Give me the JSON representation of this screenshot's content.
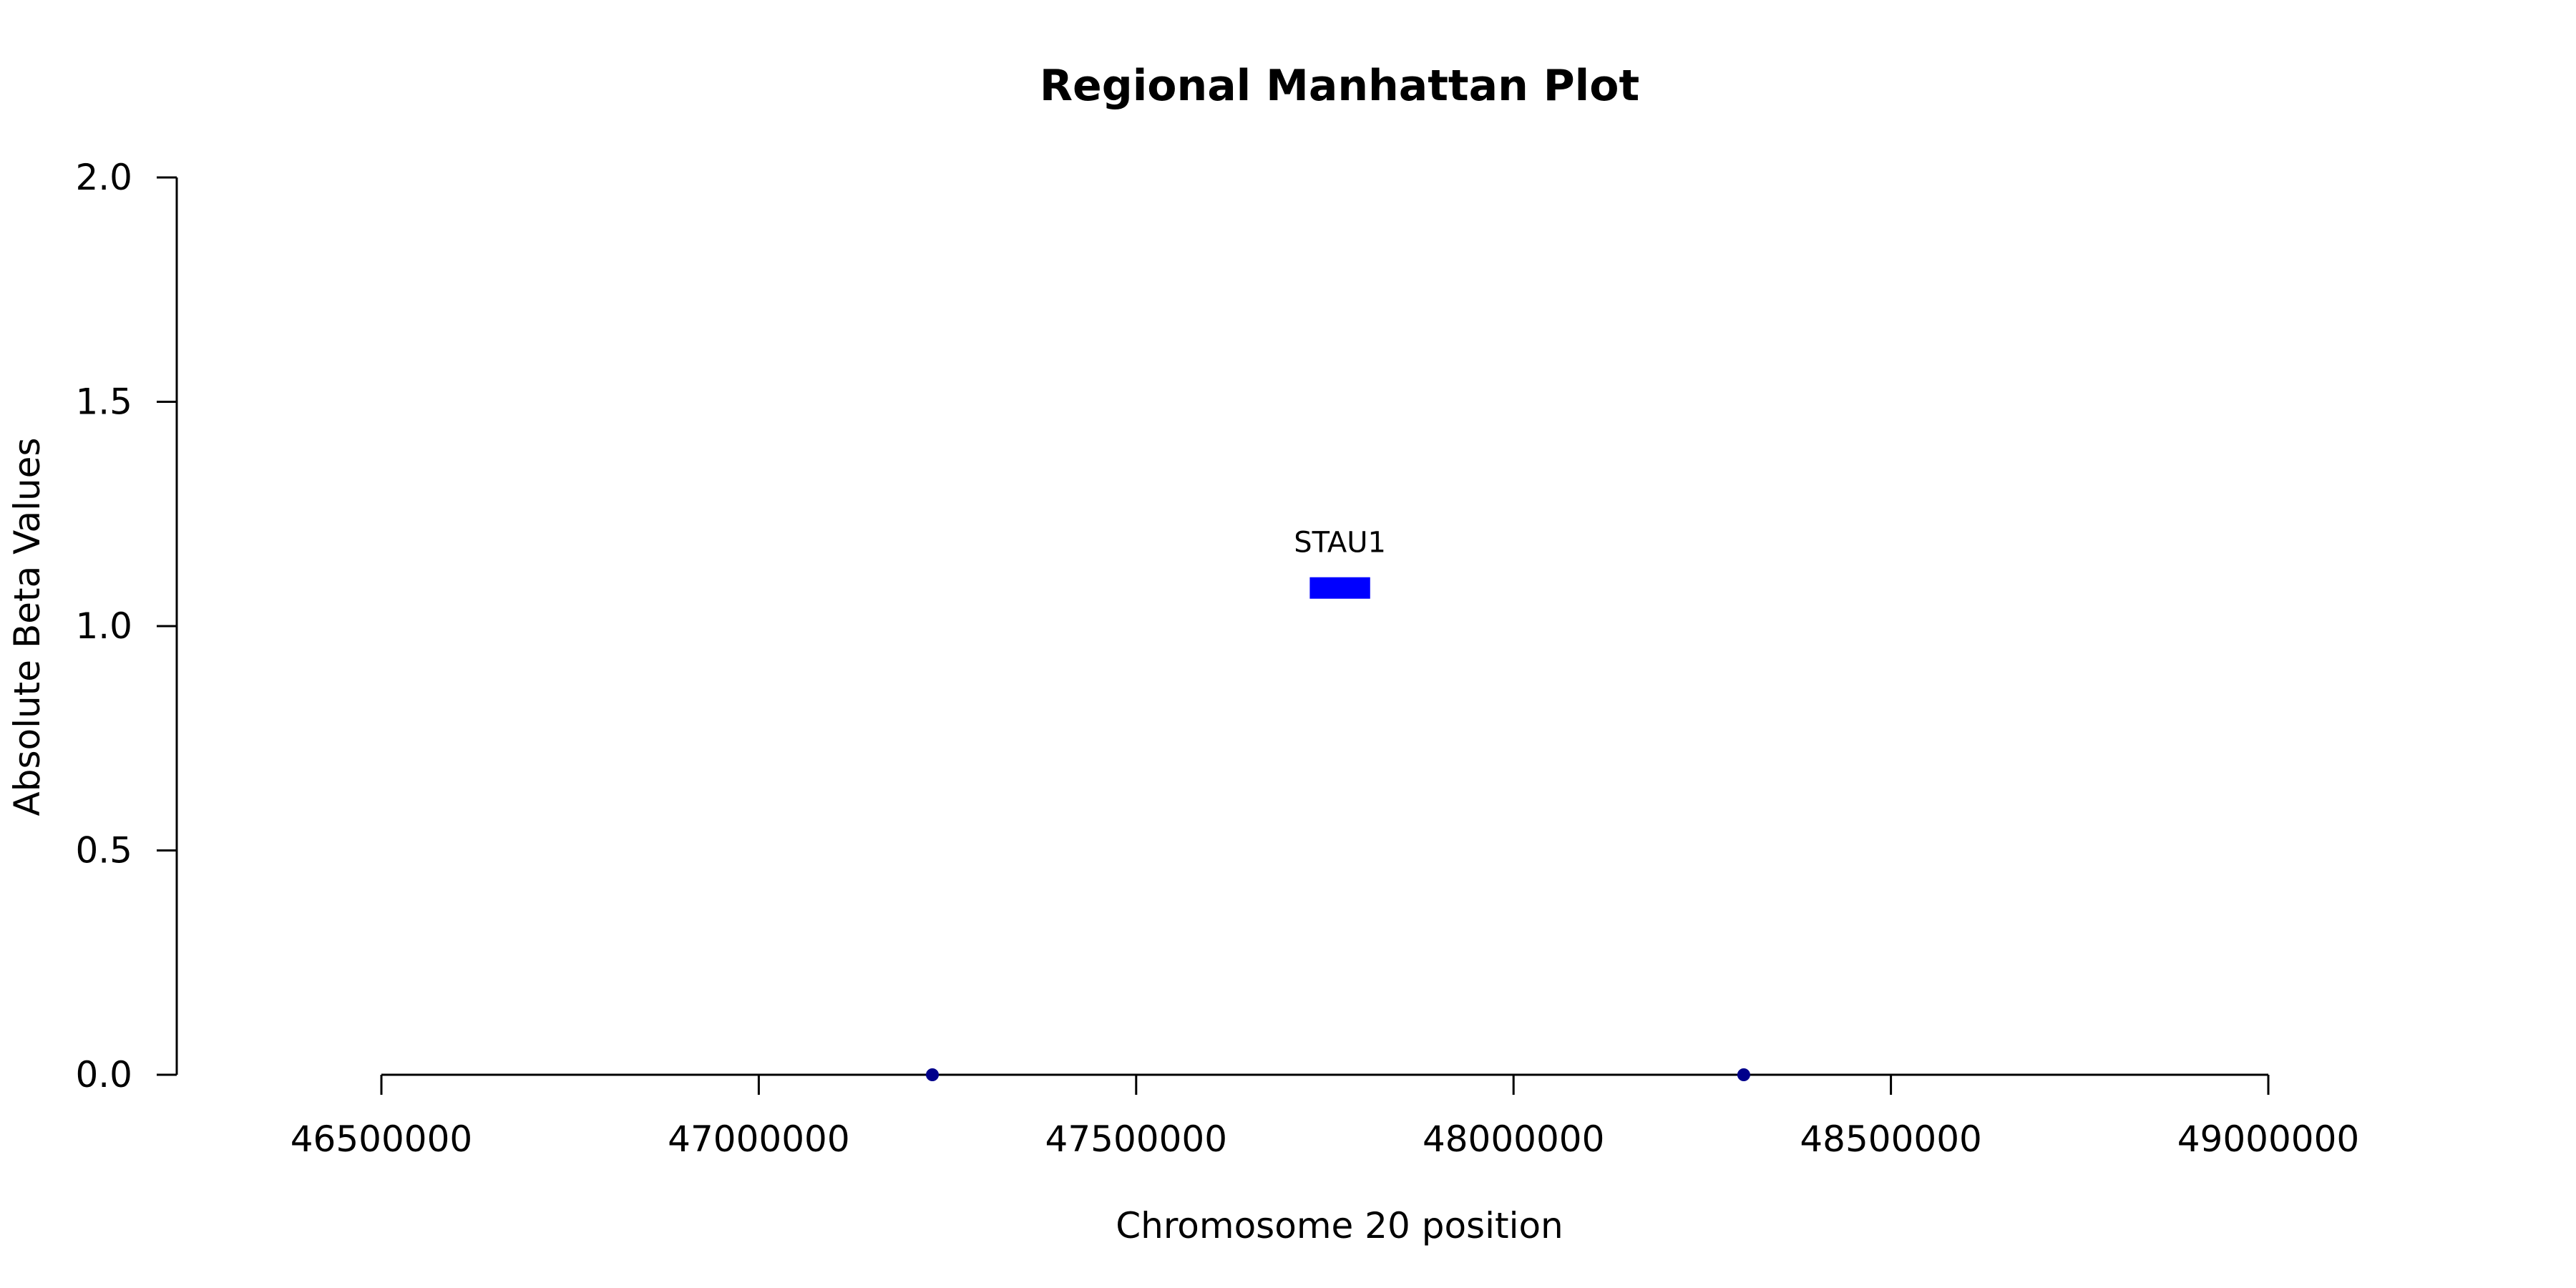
{
  "chart_data": {
    "type": "scatter",
    "title": "Regional Manhattan Plot",
    "xlabel": "Chromosome 20 position",
    "ylabel": "Absolute Beta Values",
    "xlim": [
      46500000,
      49000000
    ],
    "ylim": [
      0,
      2
    ],
    "x_ticks": [
      "46500000",
      "47000000",
      "47500000",
      "48000000",
      "48500000",
      "49000000"
    ],
    "y_ticks": [
      "0.0",
      "0.5",
      "1.0",
      "1.5",
      "2.0"
    ],
    "grid": false,
    "series": [
      {
        "points": [
          {
            "x": 47230000,
            "y": 0.0
          },
          {
            "x": 48305000,
            "y": 0.0
          }
        ],
        "color": "#00008b"
      }
    ],
    "genes": [
      {
        "name": "STAU1",
        "start": 47730000,
        "end": 47810000,
        "y": 1.085,
        "color": "#0000ff"
      }
    ]
  }
}
